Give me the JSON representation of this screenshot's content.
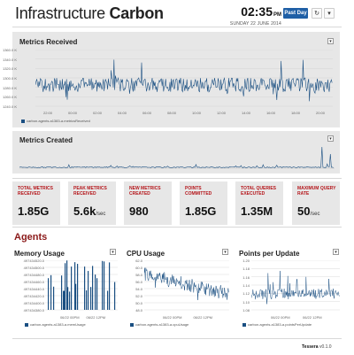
{
  "header": {
    "title_part1": "Infrastructure",
    "title_part2": "Carbon",
    "time": "02:35",
    "ampm": "PM",
    "date": "SUNDAY 22 JUNE 2014",
    "range_button": "Past Day",
    "refresh_icon": "refresh-icon",
    "more_icon": "chevron-down-icon"
  },
  "metrics_received": {
    "title": "Metrics Received",
    "legend": "carbon.agents.a1383-a.metricsReceived",
    "y_ticks": [
      "1360.0 K",
      "1340.0 K",
      "1320.0 K",
      "1300.0 K",
      "1280.0 K",
      "1260.0 K",
      "1240.0 K"
    ],
    "x_ticks": [
      "22:00",
      "00:00",
      "02:00",
      "04:00",
      "06:00",
      "08:00",
      "10:00",
      "12:00",
      "14:00",
      "16:00",
      "18:00",
      "20:00"
    ]
  },
  "metrics_created": {
    "title": "Metrics Created"
  },
  "stats": [
    {
      "label": "Total Metrics Received",
      "value": "1.85G",
      "unit": ""
    },
    {
      "label": "Peak Metrics Received",
      "value": "5.6k",
      "unit": "/sec"
    },
    {
      "label": "New Metrics Created",
      "value": "980",
      "unit": ""
    },
    {
      "label": "Points Committed",
      "value": "1.85G",
      "unit": ""
    },
    {
      "label": "Total Queries Executed",
      "value": "1.35M",
      "unit": ""
    },
    {
      "label": "Maximum Query Rate",
      "value": "50",
      "unit": "/sec"
    }
  ],
  "agents_heading": "Agents",
  "memory": {
    "title": "Memory Usage",
    "y_ticks": [
      "497434520.0",
      "497434500.0",
      "497434480.0",
      "497434460.0",
      "497434440.0",
      "497434420.0",
      "497434400.0",
      "497434380.0"
    ],
    "x_ticks": [
      "06/22 00PM",
      "06/22 12PM"
    ],
    "legend": "carbon.agents.a1383-a.memUsage"
  },
  "cpu": {
    "title": "CPU Usage",
    "y_ticks": [
      "62.0",
      "60.0",
      "58.0",
      "56.0",
      "54.0",
      "52.0",
      "50.0",
      "48.0"
    ],
    "x_ticks": [
      "06/22 00PM",
      "06/22 12PM"
    ],
    "legend": "carbon.agents.a1383-a.cpuUsage"
  },
  "points": {
    "title": "Points per Update",
    "y_ticks": [
      "1.20",
      "1.18",
      "1.16",
      "1.14",
      "1.12",
      "1.10",
      "1.08"
    ],
    "x_ticks": [
      "06/22 00PM",
      "06/22 12PM"
    ],
    "legend": "carbon.agents.a1383-a.pointsPerUpdate"
  },
  "footer": {
    "brand": "Tessera",
    "version": "v0.1.0"
  }
}
